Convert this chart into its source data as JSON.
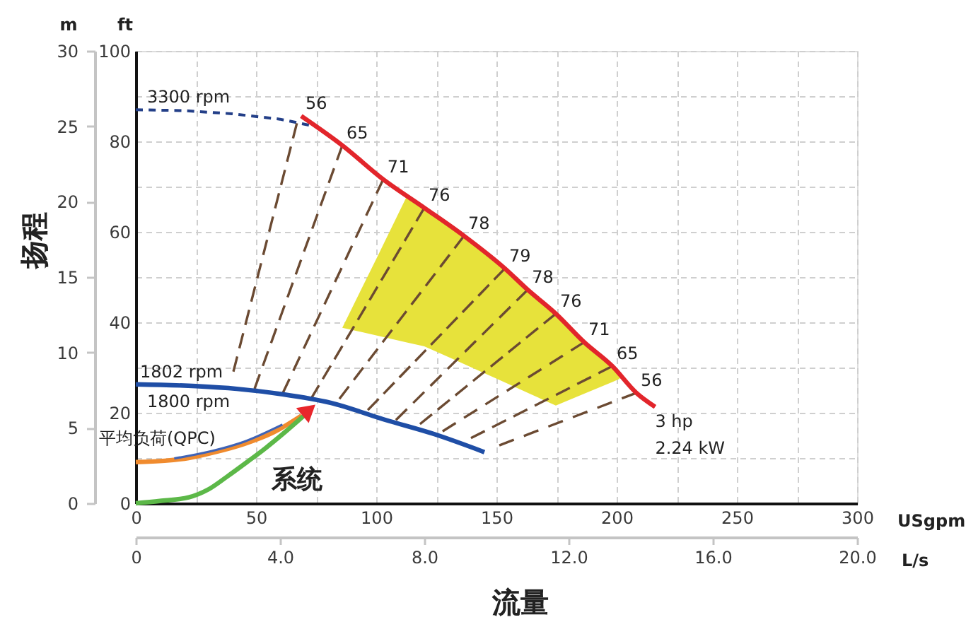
{
  "chart_data": {
    "type": "line",
    "xlabel": "USgpm",
    "x2label": "L/s",
    "ylabel": "ft",
    "y2label": "m",
    "xlim": [
      0,
      300
    ],
    "xticks": [
      0,
      {
        "value": 25,
        "label": null
      },
      50,
      {
        "value": 75,
        "label": null
      },
      100,
      {
        "value": 125,
        "label": null
      },
      150,
      {
        "value": 175,
        "label": null
      },
      200,
      {
        "value": 225,
        "label": null
      },
      250,
      {
        "value": 275,
        "label": null
      },
      300
    ],
    "x2lim": [
      0,
      20
    ],
    "x2ticks": [
      0,
      {
        "value": 4,
        "label": "4.0"
      },
      {
        "value": 8,
        "label": "8.0"
      },
      {
        "value": 12,
        "label": "12.0"
      },
      {
        "value": 16,
        "label": "16.0"
      },
      {
        "value": 20,
        "label": "20.0"
      }
    ],
    "ylim": [
      0,
      100
    ],
    "yticks": [
      0,
      {
        "value": 10,
        "label": null
      },
      20,
      {
        "value": 30,
        "label": null
      },
      40,
      {
        "value": 50,
        "label": null
      },
      60,
      {
        "value": 70,
        "label": null
      },
      80,
      {
        "value": 90,
        "label": null
      },
      100
    ],
    "y2lim": [
      0,
      30
    ],
    "y2ticks": [
      0,
      5,
      10,
      15,
      20,
      25,
      30
    ],
    "grid": true,
    "series": [
      {
        "type": "area",
        "color": "#e7e23b",
        "x": [
          85.9,
          100,
          112.4,
          120,
          136.5,
          143.5,
          153.5,
          163,
          174.7,
          186.5,
          198.2,
          201.2
        ],
        "values": [
          null,
          null,
          null,
          null,
          null,
          null,
          null,
          null,
          null,
          null,
          null,
          null
        ],
        "upper": [
          38.8,
          54,
          67.5,
          65.3,
          59.1,
          56.1,
          51.9,
          47.2,
          41.9,
          35.6,
          30.3,
          28.5
        ],
        "lower": [
          38.8,
          37.1,
          35.6,
          34.7,
          30.8,
          29.1,
          26.7,
          24.4,
          21.6,
          24.2,
          26.8,
          27.5
        ]
      },
      {
        "color": "#6b4a32",
        "line_style": "dashed",
        "x": [
          40.6,
          67
        ],
        "values": [
          29.1,
          84
        ]
      },
      {
        "color": "#6b4a32",
        "line_style": "dashed",
        "x": [
          49.4,
          85.9
        ],
        "values": [
          25.3,
          79.1
        ]
      },
      {
        "color": "#6b4a32",
        "line_style": "dashed",
        "x": [
          61.2,
          102.9
        ],
        "values": [
          24.4,
          71.6
        ]
      },
      {
        "color": "#6b4a32",
        "line_style": "dashed",
        "x": [
          72.9,
          120
        ],
        "values": [
          23.1,
          65.3
        ]
      },
      {
        "color": "#6b4a32",
        "line_style": "dashed",
        "x": [
          84.7,
          136.5
        ],
        "values": [
          23.1,
          59.1
        ]
      },
      {
        "color": "#6b4a32",
        "line_style": "dashed",
        "x": [
          96.5,
          153.5
        ],
        "values": [
          20.6,
          51.9
        ]
      },
      {
        "color": "#6b4a32",
        "line_style": "dashed",
        "x": [
          108.2,
          163
        ],
        "values": [
          18.4,
          47.2
        ]
      },
      {
        "color": "#6b4a32",
        "line_style": "dashed",
        "x": [
          118.2,
          174.7
        ],
        "values": [
          17.5,
          41.9
        ]
      },
      {
        "color": "#6b4a32",
        "line_style": "dashed",
        "x": [
          127.6,
          186.5
        ],
        "values": [
          15.9,
          35.6
        ]
      },
      {
        "color": "#6b4a32",
        "line_style": "dashed",
        "x": [
          139.4,
          198.2
        ],
        "values": [
          14.4,
          30.3
        ]
      },
      {
        "color": "#6b4a32",
        "line_style": "dashed",
        "x": [
          151.2,
          208.2
        ],
        "values": [
          12.8,
          24.4
        ]
      },
      {
        "name": "3300 rpm",
        "color": "#233f88",
        "line_style": "dashed",
        "x": [
          0,
          20,
          40,
          60,
          72
        ],
        "values": [
          87,
          86.8,
          86.1,
          84.9,
          83.6
        ]
      },
      {
        "name": "1800 rpm",
        "color": "#1f4ea6",
        "x": [
          0,
          25,
          42,
          61,
          81,
          104,
          124,
          145
        ],
        "values": [
          26.3,
          25.9,
          25.3,
          24.1,
          22.2,
          18.4,
          15.3,
          11.3
        ]
      },
      {
        "name": "3 hp\n2.24 kW",
        "color": "#e2252b",
        "x": [
          68.8,
          85.9,
          102.9,
          120,
          136.5,
          153.5,
          163,
          174.7,
          186.5,
          198.2,
          208.2,
          216
        ],
        "values": [
          85.6,
          79.1,
          71.6,
          65.3,
          59.1,
          51.9,
          47.2,
          41.9,
          35.6,
          30.3,
          24.4,
          21.3
        ]
      },
      {
        "name": "平均负荷(QPC)",
        "color": "#f08b2e",
        "x": [
          0,
          12,
          22,
          33,
          45,
          57,
          69
        ],
        "values": [
          9.1,
          9.4,
          10,
          11.3,
          13.1,
          15.6,
          19.4
        ]
      },
      {
        "color": "#4063b5",
        "x": [
          16,
          32,
          45,
          61
        ],
        "values": [
          9.9,
          11.6,
          13.6,
          17.4
        ]
      },
      {
        "name": "系统",
        "color": "#5cb848",
        "x": [
          0,
          10,
          22,
          30,
          38,
          46,
          54,
          62,
          70
        ],
        "values": [
          0,
          0.5,
          1.3,
          3,
          5.9,
          9,
          12.2,
          15.7,
          19.4
        ]
      },
      {
        "type": "scatter",
        "marker": "triangle",
        "color": "#e8262b",
        "x": [
          72
        ],
        "values": [
          20.6
        ]
      }
    ],
    "annotations": [
      "扬程",
      "流量",
      {
        "text": "1802 rpm",
        "x": 0,
        "y": 26.3
      },
      {
        "text": "56",
        "x": 68.8,
        "y": 85.6
      },
      {
        "text": "65",
        "x": 85.9,
        "y": 79.1
      },
      {
        "text": "71",
        "x": 102.9,
        "y": 71.6
      },
      {
        "text": "76",
        "x": 120,
        "y": 65.3
      },
      {
        "text": "78",
        "x": 136.5,
        "y": 59.1
      },
      {
        "text": "79",
        "x": 153.5,
        "y": 51.9
      },
      {
        "text": "78",
        "x": 163,
        "y": 47.2
      },
      {
        "text": "76",
        "x": 174.7,
        "y": 41.9
      },
      {
        "text": "71",
        "x": 186.5,
        "y": 35.6
      },
      {
        "text": "65",
        "x": 198.2,
        "y": 30.3
      },
      {
        "text": "56",
        "x": 208.2,
        "y": 24.4
      }
    ]
  }
}
